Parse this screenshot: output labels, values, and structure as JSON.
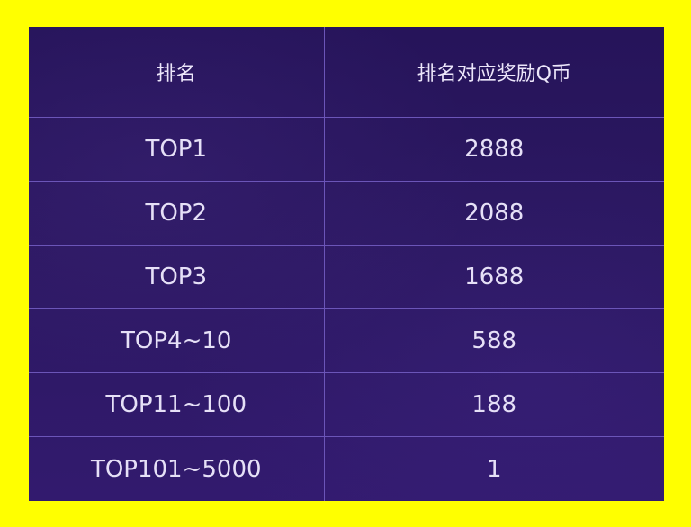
{
  "colors": {
    "page_background": "#ffff00",
    "table_background": "#2a175e",
    "grid_line": "#6b55b8",
    "text": "#e6e0f7"
  },
  "table": {
    "headers": [
      "排名",
      "排名对应奖励Q币"
    ],
    "rows": [
      {
        "rank": "TOP1",
        "reward": "2888"
      },
      {
        "rank": "TOP2",
        "reward": "2088"
      },
      {
        "rank": "TOP3",
        "reward": "1688"
      },
      {
        "rank": "TOP4~10",
        "reward": "588"
      },
      {
        "rank": "TOP11~100",
        "reward": "188"
      },
      {
        "rank": "TOP101~5000",
        "reward": "1"
      }
    ]
  }
}
